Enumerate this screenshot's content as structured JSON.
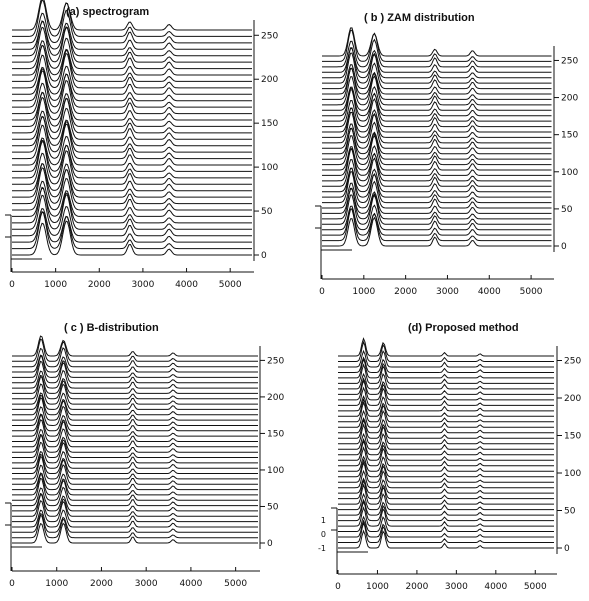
{
  "chart_data": [
    {
      "type": "waterfall-line",
      "title": "(a)   spectrogram",
      "xticks": [
        "0",
        "1000",
        "2000",
        "3000",
        "4000",
        "5000"
      ],
      "xlim": [
        0,
        5500
      ],
      "yticks": [
        "0",
        "50",
        "100",
        "150",
        "200",
        "250"
      ],
      "ylim": [
        0,
        256
      ],
      "trace_count": 36,
      "peaks": [
        {
          "x": 700,
          "height": 1.0
        },
        {
          "x": 1250,
          "height": 0.95
        },
        {
          "x": 2700,
          "height": 0.3
        },
        {
          "x": 3600,
          "height": 0.18
        }
      ]
    },
    {
      "type": "waterfall-line",
      "title": "( b ) ZAM distribution",
      "xticks": [
        "0",
        "1000",
        "2000",
        "3000",
        "4000",
        "5000"
      ],
      "xlim": [
        0,
        5500
      ],
      "yticks": [
        "0",
        "50",
        "100",
        "150",
        "200",
        "250"
      ],
      "ylim": [
        0,
        256
      ],
      "trace_count": 36,
      "peaks": [
        {
          "x": 700,
          "height": 1.0
        },
        {
          "x": 1250,
          "height": 0.9
        },
        {
          "x": 2700,
          "height": 0.28
        },
        {
          "x": 3600,
          "height": 0.2
        }
      ]
    },
    {
      "type": "waterfall-line",
      "title": "( c )   B-distribution",
      "xticks": [
        "0",
        "1000",
        "2000",
        "3000",
        "4000",
        "5000"
      ],
      "xlim": [
        0,
        5500
      ],
      "yticks": [
        "0",
        "50",
        "100",
        "150",
        "200",
        "250"
      ],
      "ylim": [
        0,
        256
      ],
      "trace_count": 36,
      "peaks": [
        {
          "x": 650,
          "height": 0.9
        },
        {
          "x": 1150,
          "height": 0.8
        },
        {
          "x": 2700,
          "height": 0.25
        },
        {
          "x": 3600,
          "height": 0.15
        }
      ]
    },
    {
      "type": "waterfall-line",
      "title": "(d)   Proposed method",
      "xticks": [
        "0",
        "1000",
        "2000",
        "3000",
        "4000",
        "5000"
      ],
      "xlim": [
        0,
        5500
      ],
      "yticks": [
        "0",
        "50",
        "100",
        "150",
        "200",
        "250"
      ],
      "ylim": [
        0,
        256
      ],
      "left_ticks": [
        "1",
        "0",
        "-1"
      ],
      "trace_count": 36,
      "peaks": [
        {
          "x": 650,
          "height": 0.85
        },
        {
          "x": 1150,
          "height": 0.75
        },
        {
          "x": 2700,
          "height": 0.2
        },
        {
          "x": 3600,
          "height": 0.12
        }
      ]
    }
  ]
}
